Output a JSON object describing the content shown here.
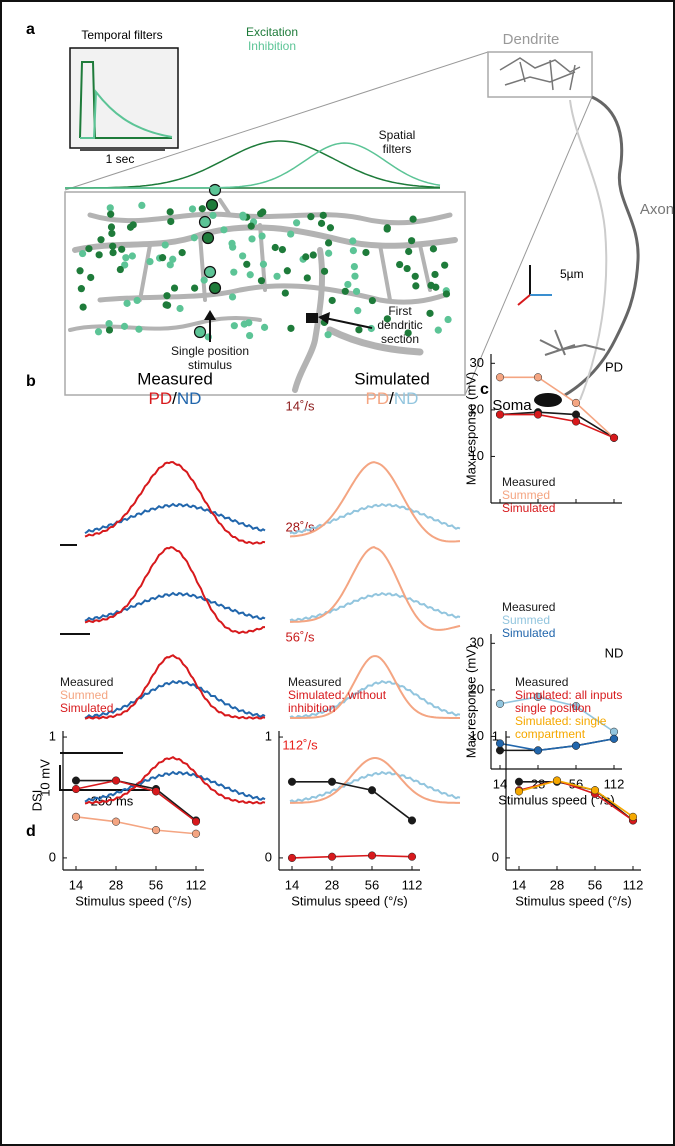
{
  "panels": {
    "a": {
      "label": "a",
      "temporal_filters": "Temporal filters",
      "time_scale": "1 sec",
      "excitation": "Excitation",
      "inhibition": "Inhibition",
      "spatial_filters": "Spatial filters",
      "dendrite": "Dendrite",
      "axon": "Axon",
      "scale": "5µm",
      "stimulus": "Single position stimulus",
      "first_section": "First dendritic section",
      "soma": "Soma"
    },
    "b": {
      "label": "b",
      "measured": {
        "title": "Measured",
        "pd": "PD",
        "sep": "/",
        "nd": "ND"
      },
      "simulated": {
        "title": "Simulated",
        "pd": "PD",
        "sep": "/",
        "nd": "ND"
      },
      "speeds": [
        "14˚/s",
        "28˚/s",
        "56˚/s",
        "112˚/s"
      ],
      "voltage_scale": "10 mV",
      "time_scale": "250 ms"
    },
    "c": {
      "label": "c"
    },
    "d": {
      "label": "d"
    }
  },
  "chart_data": [
    {
      "type": "line",
      "tag": "PD",
      "ylabel": "Max response (mV)",
      "categories": [
        null,
        null,
        null,
        null
      ],
      "ylim": [
        0,
        32
      ],
      "yticks": [
        10,
        20,
        30
      ],
      "series": [
        {
          "name": "Measured",
          "color": "#1a1a1a",
          "values": [
            19,
            19.5,
            19,
            14
          ]
        },
        {
          "name": "Summed",
          "color": "#f4a582",
          "values": [
            27,
            27,
            21.5,
            14
          ]
        },
        {
          "name": "Simulated",
          "color": "#d7191c",
          "values": [
            19,
            19,
            17.5,
            14
          ]
        }
      ]
    },
    {
      "type": "line",
      "tag": "ND",
      "ylabel": "Max response (mV)",
      "xlabel": "Stimulus speed (°/s)",
      "categories": [
        "14",
        "28",
        "56",
        "112"
      ],
      "ylim": [
        3,
        32
      ],
      "yticks": [
        10,
        20,
        30
      ],
      "series": [
        {
          "name": "Measured",
          "color": "#1a1a1a",
          "values": [
            7,
            7,
            8,
            9.5
          ]
        },
        {
          "name": "Summed",
          "color": "#92c5de",
          "values": [
            17,
            18.5,
            16.5,
            11
          ]
        },
        {
          "name": "Simulated",
          "color": "#2166ac",
          "values": [
            8.5,
            7,
            8,
            9.5
          ]
        }
      ]
    },
    {
      "type": "line",
      "ylabel": "DSI",
      "xlabel": "Stimulus speed (°/s)",
      "categories": [
        "14",
        "28",
        "56",
        "112"
      ],
      "ylim": [
        -0.1,
        1.05
      ],
      "yticks": [
        0,
        1
      ],
      "series": [
        {
          "name": "Measured",
          "color": "#1a1a1a",
          "values": [
            0.64,
            0.64,
            0.57,
            0.31
          ]
        },
        {
          "name": "Summed",
          "color": "#f4a582",
          "values": [
            0.34,
            0.3,
            0.23,
            0.2
          ]
        },
        {
          "name": "Simulated",
          "color": "#d7191c",
          "values": [
            0.57,
            0.64,
            0.55,
            0.3
          ]
        }
      ]
    },
    {
      "type": "line",
      "xlabel": "Stimulus speed (°/s)",
      "categories": [
        "14",
        "28",
        "56",
        "112"
      ],
      "ylim": [
        -0.1,
        1.05
      ],
      "yticks": [
        0,
        1
      ],
      "series": [
        {
          "name": "Measured",
          "color": "#1a1a1a",
          "values": [
            0.63,
            0.63,
            0.56,
            0.31
          ]
        },
        {
          "name": "Simulated: without inhibition",
          "color": "#d7191c",
          "values": [
            0,
            0.01,
            0.02,
            0.01
          ]
        }
      ]
    },
    {
      "type": "line",
      "xlabel": "Stimulus speed (°/s)",
      "categories": [
        "14",
        "28",
        "56",
        "112"
      ],
      "ylim": [
        -0.1,
        1.05
      ],
      "yticks": [
        0,
        1
      ],
      "series": [
        {
          "name": "Measured",
          "color": "#1a1a1a",
          "values": [
            0.63,
            0.63,
            0.56,
            0.31
          ]
        },
        {
          "name": "Simulated: all inputs single position",
          "color": "#d7191c",
          "values": [
            0.56,
            0.64,
            0.53,
            0.31
          ]
        },
        {
          "name": "Simulated: single compartment",
          "color": "#f5a800",
          "values": [
            0.55,
            0.64,
            0.56,
            0.34
          ]
        }
      ]
    }
  ]
}
